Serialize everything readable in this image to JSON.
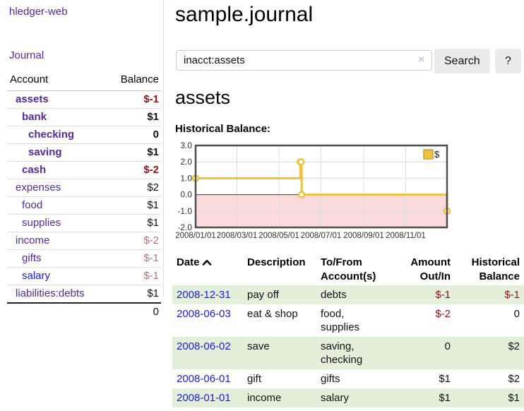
{
  "colors": {
    "link-purple": "#552a9a",
    "link-blue": "#1a1ae8",
    "neg-dark": "#941111",
    "neg-light": "#bb6e74",
    "stripe-green": "#e3efda",
    "chart-gold": "#edc240",
    "chart-gold-border": "#c9a227",
    "chart-neg-fill": "#fadbdb",
    "chart-zero-line": "#a21010",
    "chart-border": "#4e4e4e",
    "chart-grid": "#dcdcdc",
    "button-bg": "#ebebeb",
    "input-border": "#cccccc",
    "clear-x": "#cfc2e6"
  },
  "sidebar": {
    "brand": "hledger-web",
    "nav_journal": "Journal",
    "col_account": "Account",
    "col_balance": "Balance",
    "accounts": [
      {
        "name": "assets",
        "depth": 0,
        "bold": true,
        "balance": "$-1",
        "neg": "dark"
      },
      {
        "name": "bank",
        "depth": 1,
        "bold": true,
        "balance": "$1",
        "neg": "none"
      },
      {
        "name": "checking",
        "depth": 2,
        "bold": true,
        "balance": "0",
        "neg": "none"
      },
      {
        "name": "saving",
        "depth": 2,
        "bold": true,
        "balance": "$1",
        "neg": "none"
      },
      {
        "name": "cash",
        "depth": 1,
        "bold": true,
        "balance": "$-2",
        "neg": "dark"
      },
      {
        "name": "expenses",
        "depth": 0,
        "bold": false,
        "balance": "$2",
        "neg": "none"
      },
      {
        "name": "food",
        "depth": 1,
        "bold": false,
        "balance": "$1",
        "neg": "none"
      },
      {
        "name": "supplies",
        "depth": 1,
        "bold": false,
        "balance": "$1",
        "neg": "none"
      },
      {
        "name": "income",
        "depth": 0,
        "bold": false,
        "balance": "$-2",
        "neg": "light"
      },
      {
        "name": "gifts",
        "depth": 1,
        "bold": false,
        "balance": "$-1",
        "neg": "light"
      },
      {
        "name": "salary",
        "depth": 1,
        "bold": false,
        "balance": "$-1",
        "neg": "light",
        "blue": true
      },
      {
        "name": "liabilities:debts",
        "depth": 0,
        "bold": false,
        "balance": "$1",
        "neg": "none"
      }
    ],
    "total": "0"
  },
  "main": {
    "title": "sample.journal",
    "search": {
      "value": "inacct:assets",
      "clear": "×",
      "button": "Search",
      "help": "?"
    },
    "heading": "assets",
    "chart_title": "Historical Balance:"
  },
  "chart_data": {
    "type": "line",
    "step": true,
    "title": "Historical Balance",
    "legend": [
      {
        "label": "$",
        "color": "#edc240"
      }
    ],
    "legend_position": "top-right",
    "grid": true,
    "xlim": [
      "2008-01-01",
      "2008-12-31"
    ],
    "ylim": [
      -2,
      3
    ],
    "y_ticks": [
      "3.0",
      "2.0",
      "1.0",
      "0.0",
      "-1.0",
      "-2.0"
    ],
    "x_ticks": [
      {
        "label": "2008/01/01",
        "date": "2008-01-01"
      },
      {
        "label": "2008/03/01",
        "date": "2008-03-01"
      },
      {
        "label": "2008/05/01",
        "date": "2008-05-01"
      },
      {
        "label": "2008/07/01",
        "date": "2008-07-01"
      },
      {
        "label": "2008/09/01",
        "date": "2008-09-01"
      },
      {
        "label": "2008/11/01",
        "date": "2008-11-01"
      }
    ],
    "series": [
      {
        "name": "$",
        "points": [
          {
            "date": "2008-01-01",
            "value": 1
          },
          {
            "date": "2008-06-01",
            "value": 2
          },
          {
            "date": "2008-06-02",
            "value": 2
          },
          {
            "date": "2008-06-03",
            "value": 0
          },
          {
            "date": "2008-12-31",
            "value": -1
          }
        ]
      }
    ]
  },
  "register": {
    "headers": {
      "date": "Date",
      "description": "Description",
      "tofrom1": "To/From",
      "tofrom2": "Account(s)",
      "amount1": "Amount",
      "amount2": "Out/In",
      "hist1": "Historical",
      "hist2": "Balance"
    },
    "rows": [
      {
        "date": "2008-12-31",
        "description": "pay off",
        "accounts": "debts",
        "amount": "$-1",
        "amount_neg": true,
        "balance": "$-1",
        "balance_neg": true
      },
      {
        "date": "2008-06-03",
        "description": "eat & shop",
        "accounts": "food, supplies",
        "amount": "$-2",
        "amount_neg": true,
        "balance": "0",
        "balance_neg": false
      },
      {
        "date": "2008-06-02",
        "description": "save",
        "accounts": "saving, checking",
        "amount": "0",
        "amount_neg": false,
        "balance": "$2",
        "balance_neg": false
      },
      {
        "date": "2008-06-01",
        "description": "gift",
        "accounts": "gifts",
        "amount": "$1",
        "amount_neg": false,
        "balance": "$2",
        "balance_neg": false
      },
      {
        "date": "2008-01-01",
        "description": "income",
        "accounts": "salary",
        "amount": "$1",
        "amount_neg": false,
        "balance": "$1",
        "balance_neg": false
      }
    ]
  }
}
